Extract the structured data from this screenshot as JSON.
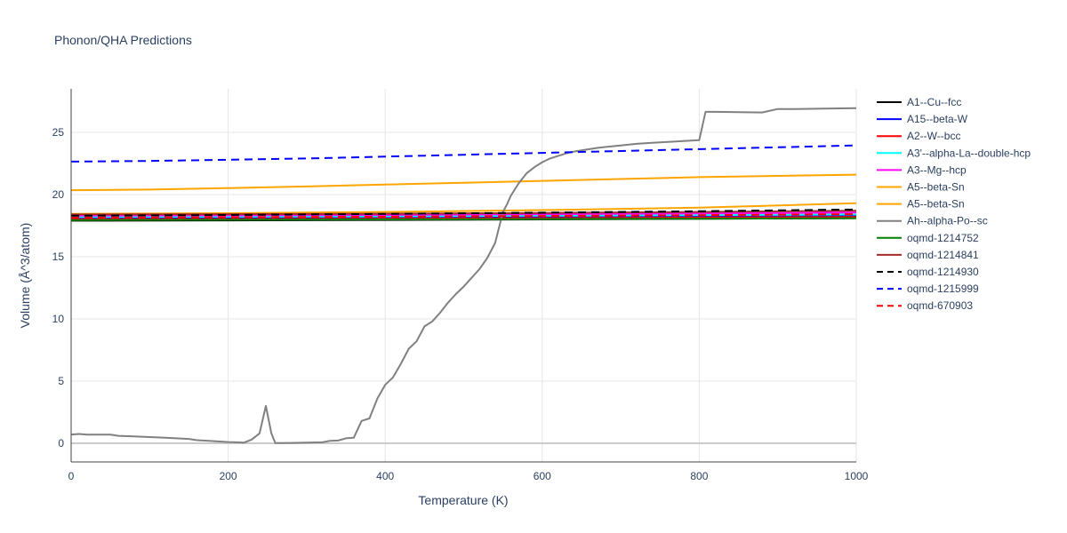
{
  "chart_data": {
    "type": "line",
    "title": "Phonon/QHA Predictions",
    "xlabel": "Temperature (K)",
    "ylabel": "Volume (Å^3/atom)",
    "xlim": [
      0,
      1000
    ],
    "ylim": [
      -1.5,
      28.5
    ],
    "xticks": [
      0,
      200,
      400,
      600,
      800,
      1000
    ],
    "yticks": [
      0,
      5,
      10,
      15,
      20,
      25
    ],
    "grid": true,
    "legend_position": "right",
    "series": [
      {
        "name": "A1--Cu--fcc",
        "color": "#000000",
        "dash": "solid",
        "x": [
          0,
          200,
          400,
          600,
          800,
          1000
        ],
        "y": [
          17.9,
          17.92,
          17.96,
          18.0,
          18.05,
          18.1
        ]
      },
      {
        "name": "A15--beta-W",
        "color": "#0000ff",
        "dash": "solid",
        "x": [
          0,
          200,
          400,
          600,
          800,
          1000
        ],
        "y": [
          18.1,
          18.12,
          18.15,
          18.2,
          18.25,
          18.3
        ]
      },
      {
        "name": "A2--W--bcc",
        "color": "#ff0000",
        "dash": "solid",
        "x": [
          0,
          200,
          400,
          600,
          800,
          1000
        ],
        "y": [
          18.0,
          18.02,
          18.05,
          18.1,
          18.15,
          18.2
        ]
      },
      {
        "name": "A3'--alpha-La--double-hcp",
        "color": "#00ffff",
        "dash": "solid",
        "x": [
          0,
          200,
          400,
          600,
          800,
          1000
        ],
        "y": [
          18.2,
          18.22,
          18.25,
          18.3,
          18.35,
          18.4
        ]
      },
      {
        "name": "A3--Mg--hcp",
        "color": "#ff00ff",
        "dash": "solid",
        "x": [
          0,
          200,
          400,
          600,
          800,
          1000
        ],
        "y": [
          18.3,
          18.32,
          18.36,
          18.42,
          18.48,
          18.55
        ]
      },
      {
        "name": "A5--beta-Sn",
        "color": "#ffa500",
        "dash": "solid",
        "x": [
          0,
          200,
          400,
          600,
          800,
          1000
        ],
        "y": [
          18.45,
          18.5,
          18.6,
          18.75,
          18.95,
          19.3
        ]
      },
      {
        "name": "A5--beta-Sn",
        "color": "#ffa500",
        "dash": "solid",
        "x": [
          0,
          100,
          200,
          300,
          400,
          500,
          600,
          700,
          800,
          900,
          1000
        ],
        "y": [
          20.35,
          20.4,
          20.52,
          20.65,
          20.8,
          20.95,
          21.1,
          21.25,
          21.4,
          21.5,
          21.6
        ]
      },
      {
        "name": "Ah--alpha-Po--sc",
        "color": "#808080",
        "dash": "solid",
        "x": [
          0,
          10,
          20,
          50,
          60,
          80,
          100,
          120,
          150,
          160,
          180,
          200,
          210,
          220,
          230,
          240,
          248,
          255,
          260,
          280,
          300,
          320,
          330,
          340,
          350,
          360,
          370,
          380,
          390,
          400,
          410,
          420,
          430,
          440,
          450,
          460,
          470,
          480,
          490,
          500,
          510,
          520,
          530,
          540,
          550,
          555,
          560,
          570,
          580,
          590,
          600,
          610,
          620,
          630,
          640,
          650,
          660,
          670,
          680,
          700,
          720,
          740,
          760,
          780,
          800,
          808,
          820,
          850,
          880,
          900,
          920,
          950,
          1000
        ],
        "y": [
          0.7,
          0.75,
          0.7,
          0.7,
          0.6,
          0.55,
          0.5,
          0.45,
          0.35,
          0.25,
          0.18,
          0.1,
          0.08,
          0.05,
          0.3,
          0.8,
          3.0,
          0.8,
          0.02,
          0.03,
          0.05,
          0.08,
          0.2,
          0.22,
          0.4,
          0.45,
          1.8,
          2.0,
          3.6,
          4.7,
          5.3,
          6.4,
          7.6,
          8.2,
          9.4,
          9.8,
          10.5,
          11.3,
          12.0,
          12.6,
          13.3,
          14.0,
          14.9,
          16.1,
          18.6,
          19.2,
          19.9,
          20.9,
          21.7,
          22.2,
          22.6,
          22.9,
          23.1,
          23.3,
          23.45,
          23.55,
          23.65,
          23.75,
          23.82,
          23.95,
          24.08,
          24.16,
          24.23,
          24.3,
          24.38,
          26.65,
          26.65,
          26.63,
          26.6,
          26.88,
          26.87,
          26.9,
          26.95
        ]
      },
      {
        "name": "oqmd-1214752",
        "color": "#008000",
        "dash": "solid",
        "x": [
          0,
          200,
          400,
          600,
          800,
          1000
        ],
        "y": [
          17.95,
          17.97,
          18.0,
          18.03,
          18.06,
          18.1
        ]
      },
      {
        "name": "oqmd-1214841",
        "color": "#a52a2a",
        "dash": "solid",
        "x": [
          0,
          200,
          400,
          600,
          800,
          1000
        ],
        "y": [
          18.4,
          18.42,
          18.46,
          18.52,
          18.6,
          18.7
        ]
      },
      {
        "name": "oqmd-1214930",
        "color": "#000000",
        "dash": "dash",
        "x": [
          0,
          200,
          400,
          600,
          800,
          1000
        ],
        "y": [
          18.3,
          18.36,
          18.44,
          18.54,
          18.66,
          18.8
        ]
      },
      {
        "name": "oqmd-1215999",
        "color": "#0000ff",
        "dash": "dash",
        "x": [
          0,
          100,
          200,
          300,
          400,
          500,
          600,
          700,
          800,
          900,
          1000
        ],
        "y": [
          22.65,
          22.7,
          22.8,
          22.9,
          23.05,
          23.2,
          23.35,
          23.5,
          23.65,
          23.8,
          23.95
        ]
      },
      {
        "name": "oqmd-670903",
        "color": "#ff0000",
        "dash": "dash",
        "x": [
          0,
          200,
          400,
          600,
          800,
          1000
        ],
        "y": [
          18.15,
          18.18,
          18.22,
          18.28,
          18.34,
          18.42
        ]
      }
    ]
  }
}
